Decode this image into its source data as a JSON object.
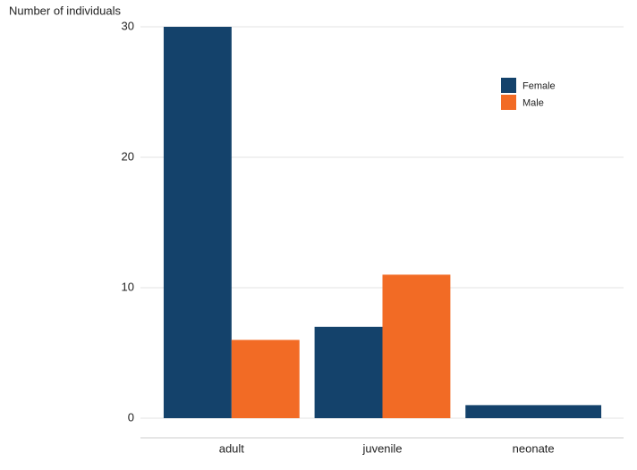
{
  "chart_data": {
    "type": "bar",
    "y_label": "Number of individuals",
    "categories": [
      "adult",
      "juvenile",
      "neonate"
    ],
    "series": [
      {
        "name": "Female",
        "color": "#14426b",
        "values": [
          30,
          7,
          1
        ]
      },
      {
        "name": "Male",
        "color": "#f26b25",
        "values": [
          6,
          11,
          null
        ]
      }
    ],
    "ylim": [
      0,
      30
    ],
    "yticks": [
      0,
      10,
      20,
      30
    ],
    "grid": true,
    "legend": "top-right"
  }
}
